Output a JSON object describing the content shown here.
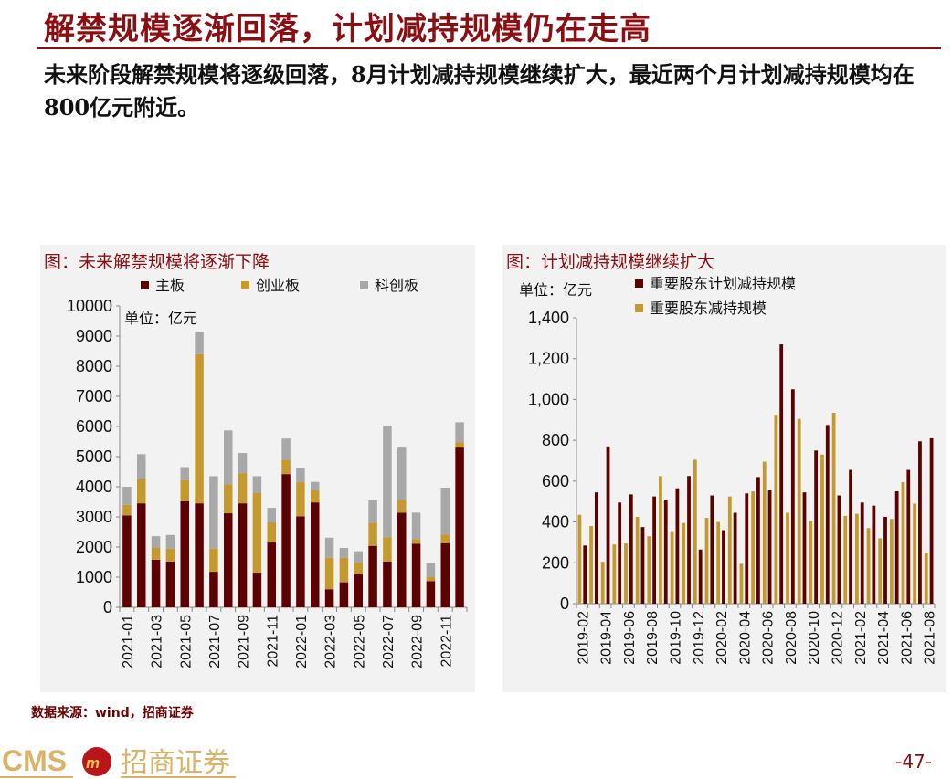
{
  "header": {
    "title": "解禁规模逐渐回落，计划减持规模仍在走高",
    "subtitle": "未来阶段解禁规模将逐级回落，8月计划减持规模继续扩大，最近两个月计划减持规模均在800亿元附近。"
  },
  "footer": {
    "source": "数据来源：wind，招商证券",
    "page": "-47-",
    "logo_text": "CMS 招商证券"
  },
  "colors": {
    "main": "#5c0000",
    "gold": "#c49a2f",
    "gray": "#a8a8a8",
    "title": "#8b0f12"
  },
  "chart_data": [
    {
      "type": "bar",
      "stacked": true,
      "title": "图：未来解禁规模将逐渐下降",
      "unit_label": "单位：亿元",
      "ylim": [
        0,
        10000
      ],
      "yticks": [
        0,
        1000,
        2000,
        3000,
        4000,
        5000,
        6000,
        7000,
        8000,
        9000,
        10000
      ],
      "legend_position": "top",
      "categories": [
        "2021-01",
        "2021-02",
        "2021-03",
        "2021-04",
        "2021-05",
        "2021-06",
        "2021-07",
        "2021-08",
        "2021-09",
        "2021-10",
        "2021-11",
        "2021-12",
        "2022-01",
        "2022-02",
        "2022-03",
        "2022-04",
        "2022-05",
        "2022-06",
        "2022-07",
        "2022-08",
        "2022-09",
        "2022-10",
        "2022-11",
        "2022-12"
      ],
      "xtick_labels": [
        "2021-01",
        "2021-03",
        "2021-05",
        "2021-07",
        "2021-09",
        "2021-11",
        "2022-01",
        "2022-03",
        "2022-05",
        "2022-07",
        "2022-09",
        "2022-11"
      ],
      "series": [
        {
          "name": "主板",
          "color": "#5c0000",
          "values": [
            3050,
            3450,
            1580,
            1520,
            3520,
            3450,
            1180,
            3120,
            3450,
            1150,
            2150,
            4420,
            3020,
            3480,
            600,
            830,
            1090,
            2040,
            1520,
            3140,
            2110,
            870,
            2130,
            5300
          ]
        },
        {
          "name": "创业板",
          "color": "#c49a2f",
          "values": [
            350,
            800,
            390,
            430,
            700,
            4950,
            770,
            960,
            1000,
            2650,
            670,
            480,
            1130,
            400,
            1040,
            810,
            390,
            760,
            810,
            420,
            150,
            130,
            290,
            170
          ]
        },
        {
          "name": "科创板",
          "color": "#a8a8a8",
          "values": [
            600,
            830,
            390,
            450,
            430,
            750,
            2400,
            1790,
            670,
            550,
            480,
            700,
            480,
            280,
            670,
            330,
            380,
            750,
            3690,
            1740,
            880,
            480,
            1550,
            670
          ]
        }
      ]
    },
    {
      "type": "bar",
      "stacked": false,
      "title": "图：计划减持规模继续扩大",
      "unit_label": "单位：亿元",
      "ylim": [
        0,
        1400
      ],
      "yticks": [
        "0",
        "200",
        "400",
        "600",
        "800",
        "1,000",
        "1,200",
        "1,400"
      ],
      "legend_position": "top",
      "categories": [
        "2019-02",
        "2019-03",
        "2019-04",
        "2019-05",
        "2019-06",
        "2019-07",
        "2019-08",
        "2019-09",
        "2019-10",
        "2019-11",
        "2019-12",
        "2020-01",
        "2020-02",
        "2020-03",
        "2020-04",
        "2020-05",
        "2020-06",
        "2020-07",
        "2020-08",
        "2020-09",
        "2020-10",
        "2020-11",
        "2020-12",
        "2021-01",
        "2021-02",
        "2021-03",
        "2021-04",
        "2021-05",
        "2021-06",
        "2021-07",
        "2021-08"
      ],
      "xtick_labels": [
        "2019-02",
        "2019-04",
        "2019-06",
        "2019-08",
        "2019-10",
        "2019-12",
        "2020-02",
        "2020-04",
        "2020-06",
        "2020-08",
        "2020-10",
        "2020-12",
        "2021-02",
        "2021-04",
        "2021-06",
        "2021-08"
      ],
      "series": [
        {
          "name": "重要股东减持规模",
          "color": "#c49a2f",
          "values": [
            435,
            380,
            205,
            290,
            295,
            425,
            330,
            625,
            355,
            395,
            705,
            420,
            400,
            525,
            195,
            550,
            695,
            925,
            445,
            905,
            405,
            730,
            935,
            430,
            440,
            370,
            320,
            415,
            595,
            490,
            250
          ]
        },
        {
          "name": "重要股东计划减持规模",
          "color": "#5c0000",
          "values": [
            285,
            545,
            770,
            495,
            535,
            375,
            525,
            510,
            565,
            625,
            265,
            530,
            360,
            445,
            540,
            620,
            555,
            1270,
            1050,
            545,
            750,
            875,
            530,
            655,
            495,
            480,
            425,
            550,
            655,
            795,
            810
          ]
        }
      ]
    }
  ]
}
